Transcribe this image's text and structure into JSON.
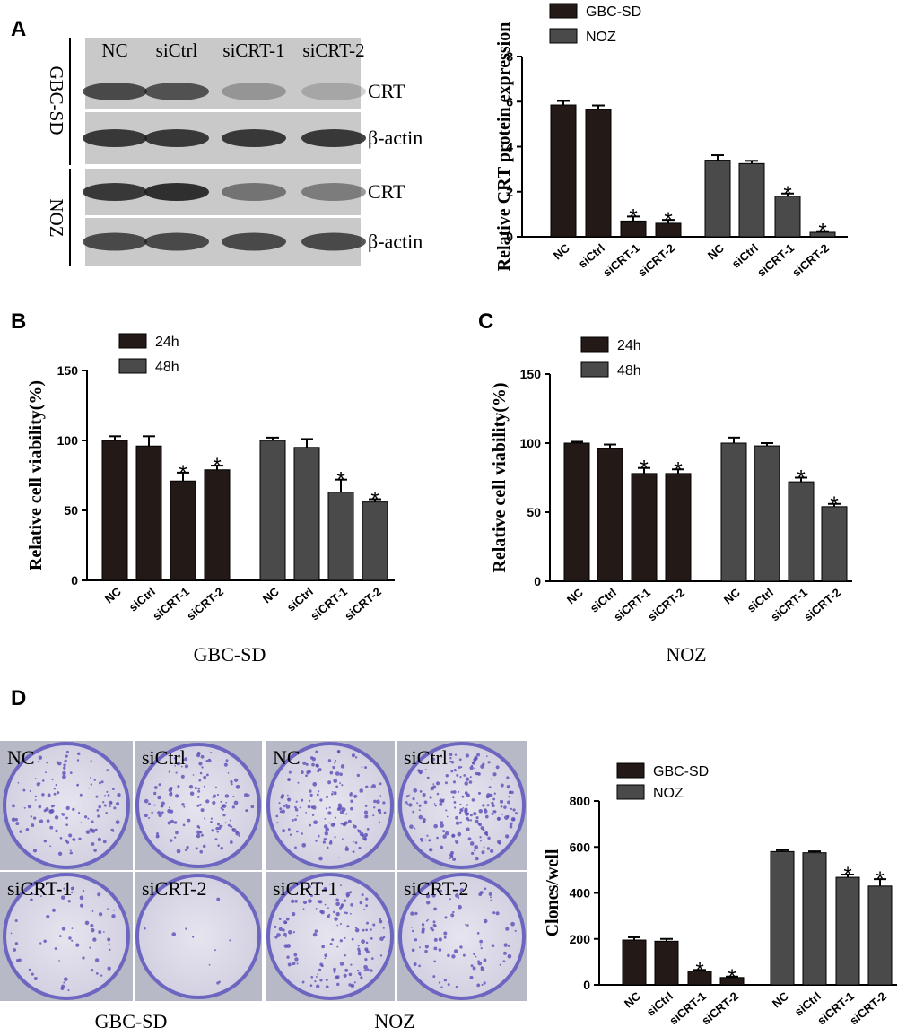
{
  "panel_labels": [
    "A",
    "B",
    "C",
    "D"
  ],
  "blot": {
    "lanes": [
      "NC",
      "siCtrl",
      "siCRT-1",
      "siCRT-2"
    ],
    "groups": [
      "GBC-SD",
      "NOZ"
    ],
    "rows": [
      "CRT",
      "β-actin",
      "CRT",
      "β-actin"
    ]
  },
  "colony": {
    "wells": [
      "NC",
      "siCtrl",
      "siCRT-1",
      "siCRT-2",
      "NC",
      "siCtrl",
      "siCRT-1",
      "siCRT-2"
    ],
    "groups": [
      "GBC-SD",
      "NOZ"
    ]
  },
  "chart_data": [
    {
      "type": "bar",
      "y_label": "Relative CRT protein expression",
      "categories": [
        "NC",
        "siCtrl",
        "siCRT-1",
        "siCRT-2",
        "NC",
        "siCtrl",
        "siCRT-1",
        "siCRT-2"
      ],
      "series": [
        {
          "name": "GBC-SD",
          "color": "#231916",
          "values": [
            5.85,
            5.65,
            0.7,
            0.6,
            null,
            null,
            null,
            null
          ],
          "errors": [
            0.18,
            0.18,
            0.2,
            0.15,
            null,
            null,
            null,
            null
          ],
          "significance": [
            null,
            null,
            "*",
            "*",
            null,
            null,
            null,
            null
          ]
        },
        {
          "name": "NOZ",
          "color": "#4a4a4a",
          "values": [
            null,
            null,
            null,
            null,
            3.4,
            3.25,
            1.8,
            0.2
          ],
          "errors": [
            null,
            null,
            null,
            null,
            0.22,
            0.12,
            0.12,
            0.05
          ],
          "significance": [
            null,
            null,
            null,
            null,
            null,
            null,
            "*",
            "*"
          ]
        }
      ],
      "ylim": [
        0,
        8
      ],
      "yticks": [
        0,
        2,
        4,
        6,
        8
      ]
    },
    {
      "type": "bar",
      "y_label": "Relative cell viability(%)",
      "x_label": "GBC-SD",
      "categories": [
        "NC",
        "siCtrl",
        "siCRT-1",
        "siCRT-2",
        "NC",
        "siCtrl",
        "siCRT-1",
        "siCRT-2"
      ],
      "series": [
        {
          "name": "24h",
          "color": "#231916",
          "values": [
            100,
            96,
            71,
            79,
            null,
            null,
            null,
            null
          ],
          "errors": [
            3,
            7,
            6,
            3,
            null,
            null,
            null,
            null
          ],
          "significance": [
            null,
            null,
            "*",
            "*",
            null,
            null,
            null,
            null
          ]
        },
        {
          "name": "48h",
          "color": "#4a4a4a",
          "values": [
            null,
            null,
            null,
            null,
            100,
            95,
            63,
            56
          ],
          "errors": [
            null,
            null,
            null,
            null,
            2,
            6,
            9,
            2
          ],
          "significance": [
            null,
            null,
            null,
            null,
            null,
            null,
            "*",
            "*"
          ]
        }
      ],
      "ylim": [
        0,
        150
      ],
      "yticks": [
        0,
        50,
        100,
        150
      ]
    },
    {
      "type": "bar",
      "y_label": "Relative cell viability(%)",
      "x_label": "NOZ",
      "categories": [
        "NC",
        "siCtrl",
        "siCRT-1",
        "siCRT-2",
        "NC",
        "siCtrl",
        "siCRT-1",
        "siCRT-2"
      ],
      "series": [
        {
          "name": "24h",
          "color": "#231916",
          "values": [
            100,
            96,
            78,
            78,
            null,
            null,
            null,
            null
          ],
          "errors": [
            1,
            3,
            4,
            3,
            null,
            null,
            null,
            null
          ],
          "significance": [
            null,
            null,
            "*",
            "*",
            null,
            null,
            null,
            null
          ]
        },
        {
          "name": "48h",
          "color": "#4a4a4a",
          "values": [
            null,
            null,
            null,
            null,
            100,
            98,
            72,
            54
          ],
          "errors": [
            null,
            null,
            null,
            null,
            4,
            2,
            3,
            2
          ],
          "significance": [
            null,
            null,
            null,
            null,
            null,
            null,
            "*",
            "*"
          ]
        }
      ],
      "ylim": [
        0,
        150
      ],
      "yticks": [
        0,
        50,
        100,
        150
      ]
    },
    {
      "type": "bar",
      "y_label": "Clones/well",
      "categories": [
        "NC",
        "siCtrl",
        "siCRT-1",
        "siCRT-2",
        "NC",
        "siCtrl",
        "siCRT-1",
        "siCRT-2"
      ],
      "series": [
        {
          "name": "GBC-SD",
          "color": "#231916",
          "values": [
            195,
            190,
            60,
            32,
            null,
            null,
            null,
            null
          ],
          "errors": [
            12,
            10,
            5,
            4,
            null,
            null,
            null,
            null
          ],
          "significance": [
            null,
            null,
            "*",
            "*",
            null,
            null,
            null,
            null
          ]
        },
        {
          "name": "NOZ",
          "color": "#4a4a4a",
          "values": [
            null,
            null,
            null,
            null,
            580,
            575,
            468,
            430
          ],
          "errors": [
            null,
            null,
            null,
            null,
            6,
            6,
            12,
            30
          ],
          "significance": [
            null,
            null,
            null,
            null,
            null,
            null,
            "*",
            "*"
          ]
        }
      ],
      "ylim": [
        0,
        800
      ],
      "yticks": [
        0,
        200,
        400,
        600,
        800
      ]
    }
  ]
}
